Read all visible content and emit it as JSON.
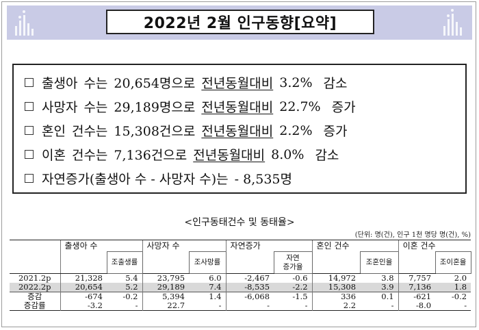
{
  "title": "2022년 2월 인구동향[요약]",
  "summary": [
    {
      "parts": [
        "출생아",
        "수는",
        "20,654명으로"
      ],
      "compare": "전년동월대비",
      "rate": "3.2%",
      "change": "감소"
    },
    {
      "parts": [
        "사망자",
        "수는",
        "29,189명으로"
      ],
      "compare": "전년동월대비",
      "rate": "22.7%",
      "change": "증가"
    },
    {
      "parts": [
        "혼인",
        "건수는",
        "15,308건으로"
      ],
      "compare": "전년동월대비",
      "rate": "2.2%",
      "change": "증가"
    },
    {
      "parts": [
        "이혼",
        "건수는",
        "7,136건으로"
      ],
      "compare": "전년동월대비",
      "rate": "8.0%",
      "change": "감소"
    }
  ],
  "summary_last": {
    "text": "자연증가(출생아 수 - 사망자 수)는",
    "value": "- 8,535명"
  },
  "table": {
    "title": "<인구동태건수 및 동태율>",
    "unit": "(단위: 명(건), 인구 1천 명당 명(건), %)",
    "groups": [
      "출생아 수",
      "사망자 수",
      "자연증가",
      "혼인 건수",
      "이혼 건수"
    ],
    "subs": [
      "조출생률",
      "조사망률",
      "자연증가율",
      "조혼인율",
      "조이혼율"
    ],
    "sub_natural_line1": "자연",
    "sub_natural_line2": "증가율",
    "rows": [
      {
        "label": "2021.2p",
        "cells": [
          "21,328",
          "5.4",
          "23,795",
          "6.0",
          "-2,467",
          "-0.6",
          "14,972",
          "3.8",
          "7,757",
          "2.0"
        ]
      },
      {
        "label": "2022.2p",
        "cells": [
          "20,654",
          "5.2",
          "29,189",
          "7.4",
          "-8,535",
          "-2.2",
          "15,308",
          "3.9",
          "7,136",
          "1.8"
        ]
      },
      {
        "label": "증감",
        "cells": [
          "-674",
          "-0.2",
          "5,394",
          "1.4",
          "-6,068",
          "-1.5",
          "336",
          "0.1",
          "-621",
          "-0.2"
        ]
      },
      {
        "label": "증감률",
        "cells": [
          "-3.2",
          "-",
          "22.7",
          "-",
          "-",
          "-",
          "2.2",
          "-",
          "-8.0",
          "-"
        ]
      }
    ]
  }
}
